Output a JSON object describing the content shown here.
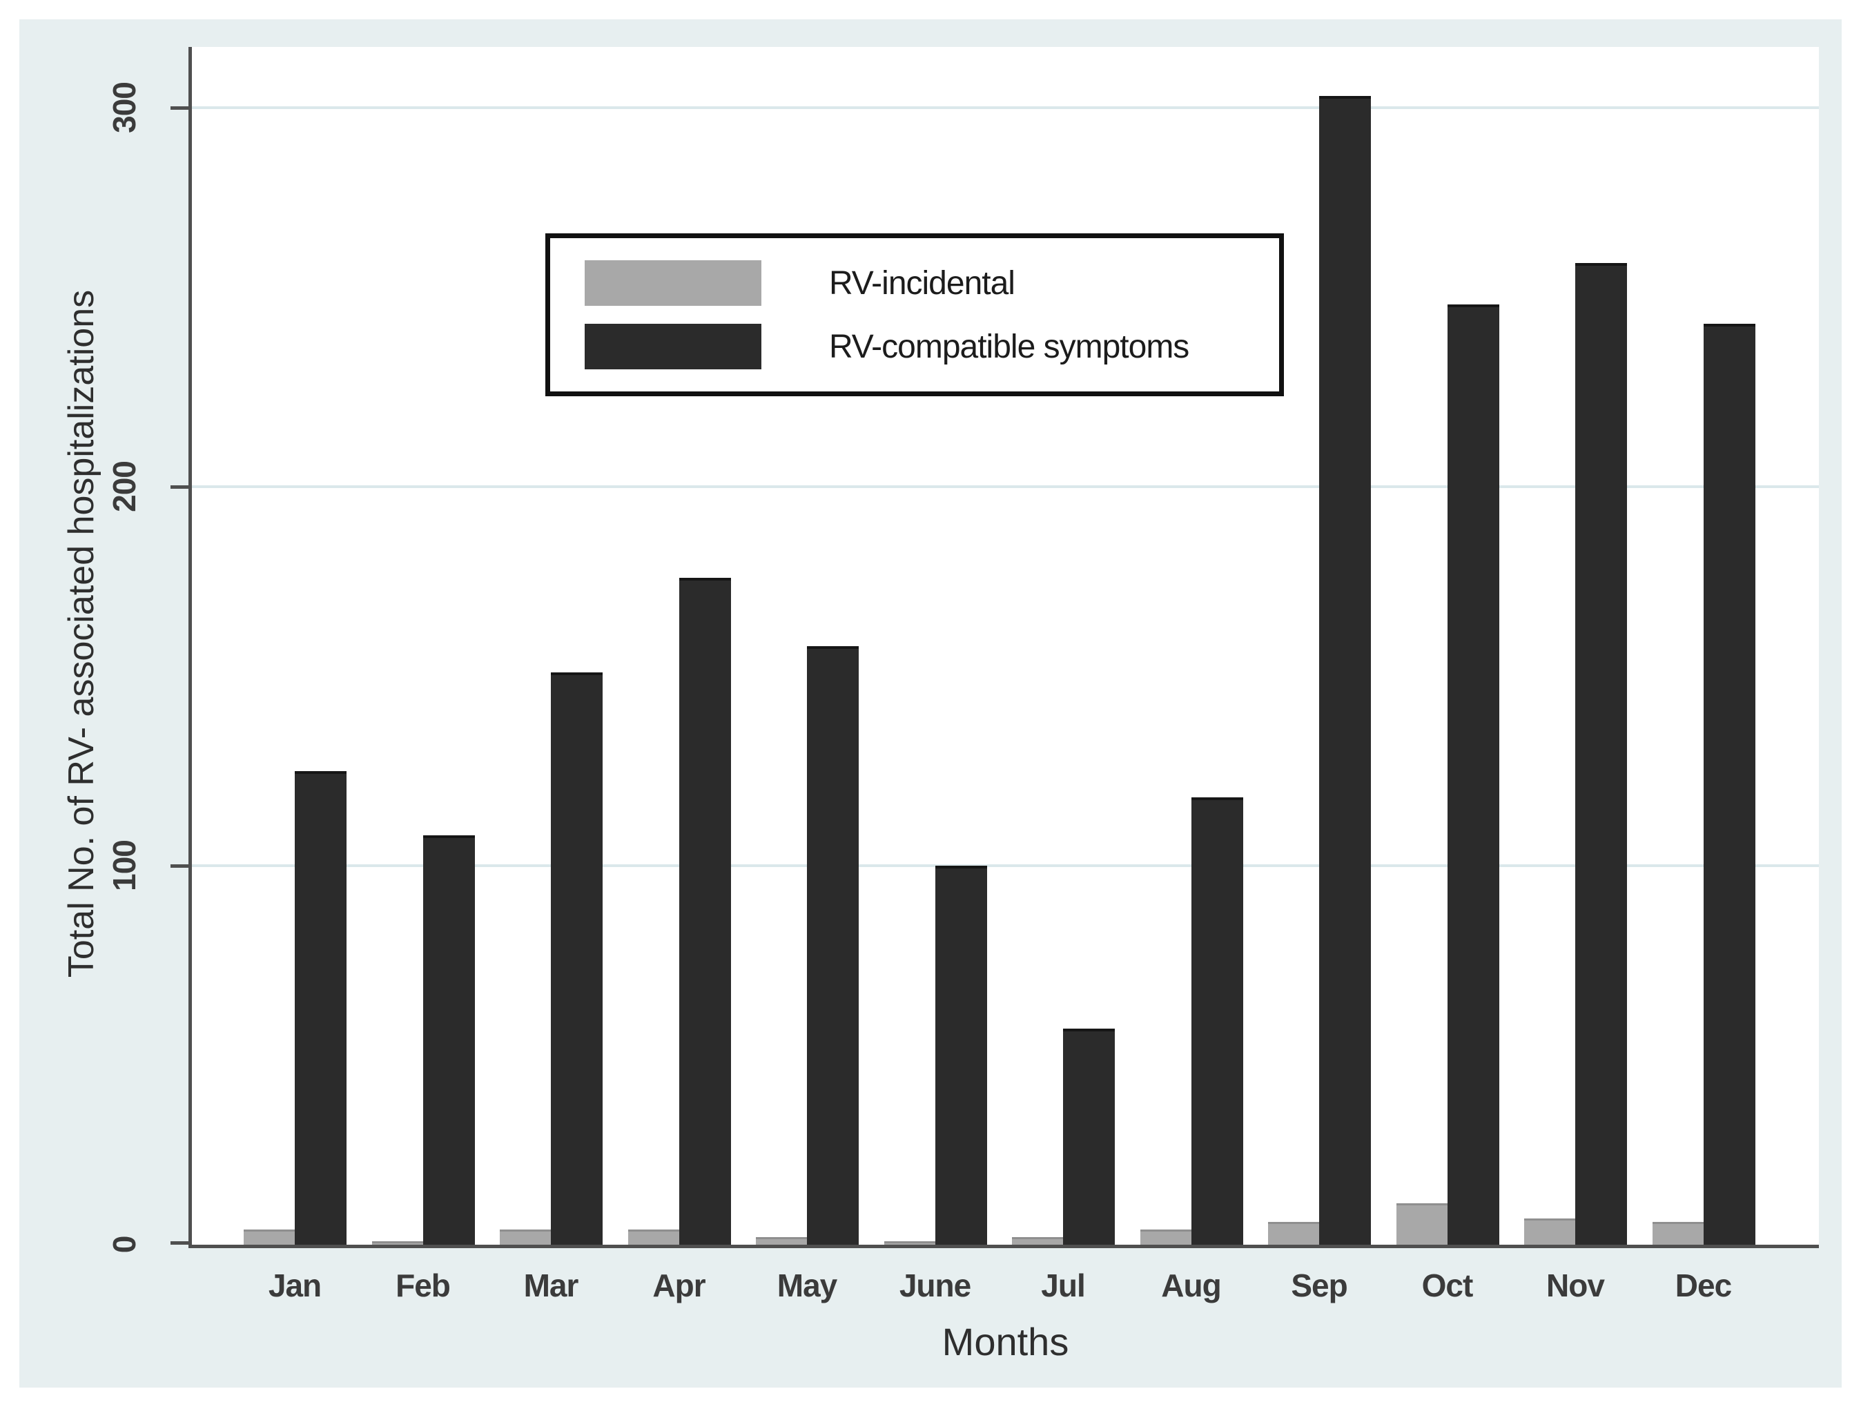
{
  "figure": {
    "y_axis_title": "Total No. of RV- associated hospitalizations",
    "x_axis_title": "Months",
    "legend": {
      "items": [
        {
          "label": "RV-incidental",
          "color": "#a8a8a8"
        },
        {
          "label": "RV-compatible symptoms",
          "color": "#2b2b2b"
        }
      ]
    },
    "colors": {
      "canvas_background": "#e7eff0",
      "plot_background": "#ffffff",
      "gridline": "#dbe8eb",
      "axis_line": "#4f4f4f",
      "text": "#3b3b3b",
      "legend_border": "#111111"
    }
  },
  "chart_data": {
    "type": "bar",
    "categories": [
      "Jan",
      "Feb",
      "Mar",
      "Apr",
      "May",
      "June",
      "Jul",
      "Aug",
      "Sep",
      "Oct",
      "Nov",
      "Dec"
    ],
    "series": [
      {
        "name": "RV-incidental",
        "color": "#a8a8a8",
        "values": [
          4,
          1,
          4,
          4,
          2,
          1,
          2,
          4,
          6,
          11,
          7,
          6
        ]
      },
      {
        "name": "RV-compatible symptoms",
        "color": "#2b2b2b",
        "values": [
          125,
          108,
          151,
          176,
          158,
          100,
          57,
          118,
          303,
          248,
          259,
          243
        ]
      }
    ],
    "title": "",
    "xlabel": "Months",
    "ylabel": "Total No. of RV- associated hospitalizations",
    "ylim": [
      0,
      316
    ],
    "yticks": [
      0,
      100,
      200,
      300
    ],
    "grid": true,
    "legend_position": "upper-left-inside"
  }
}
